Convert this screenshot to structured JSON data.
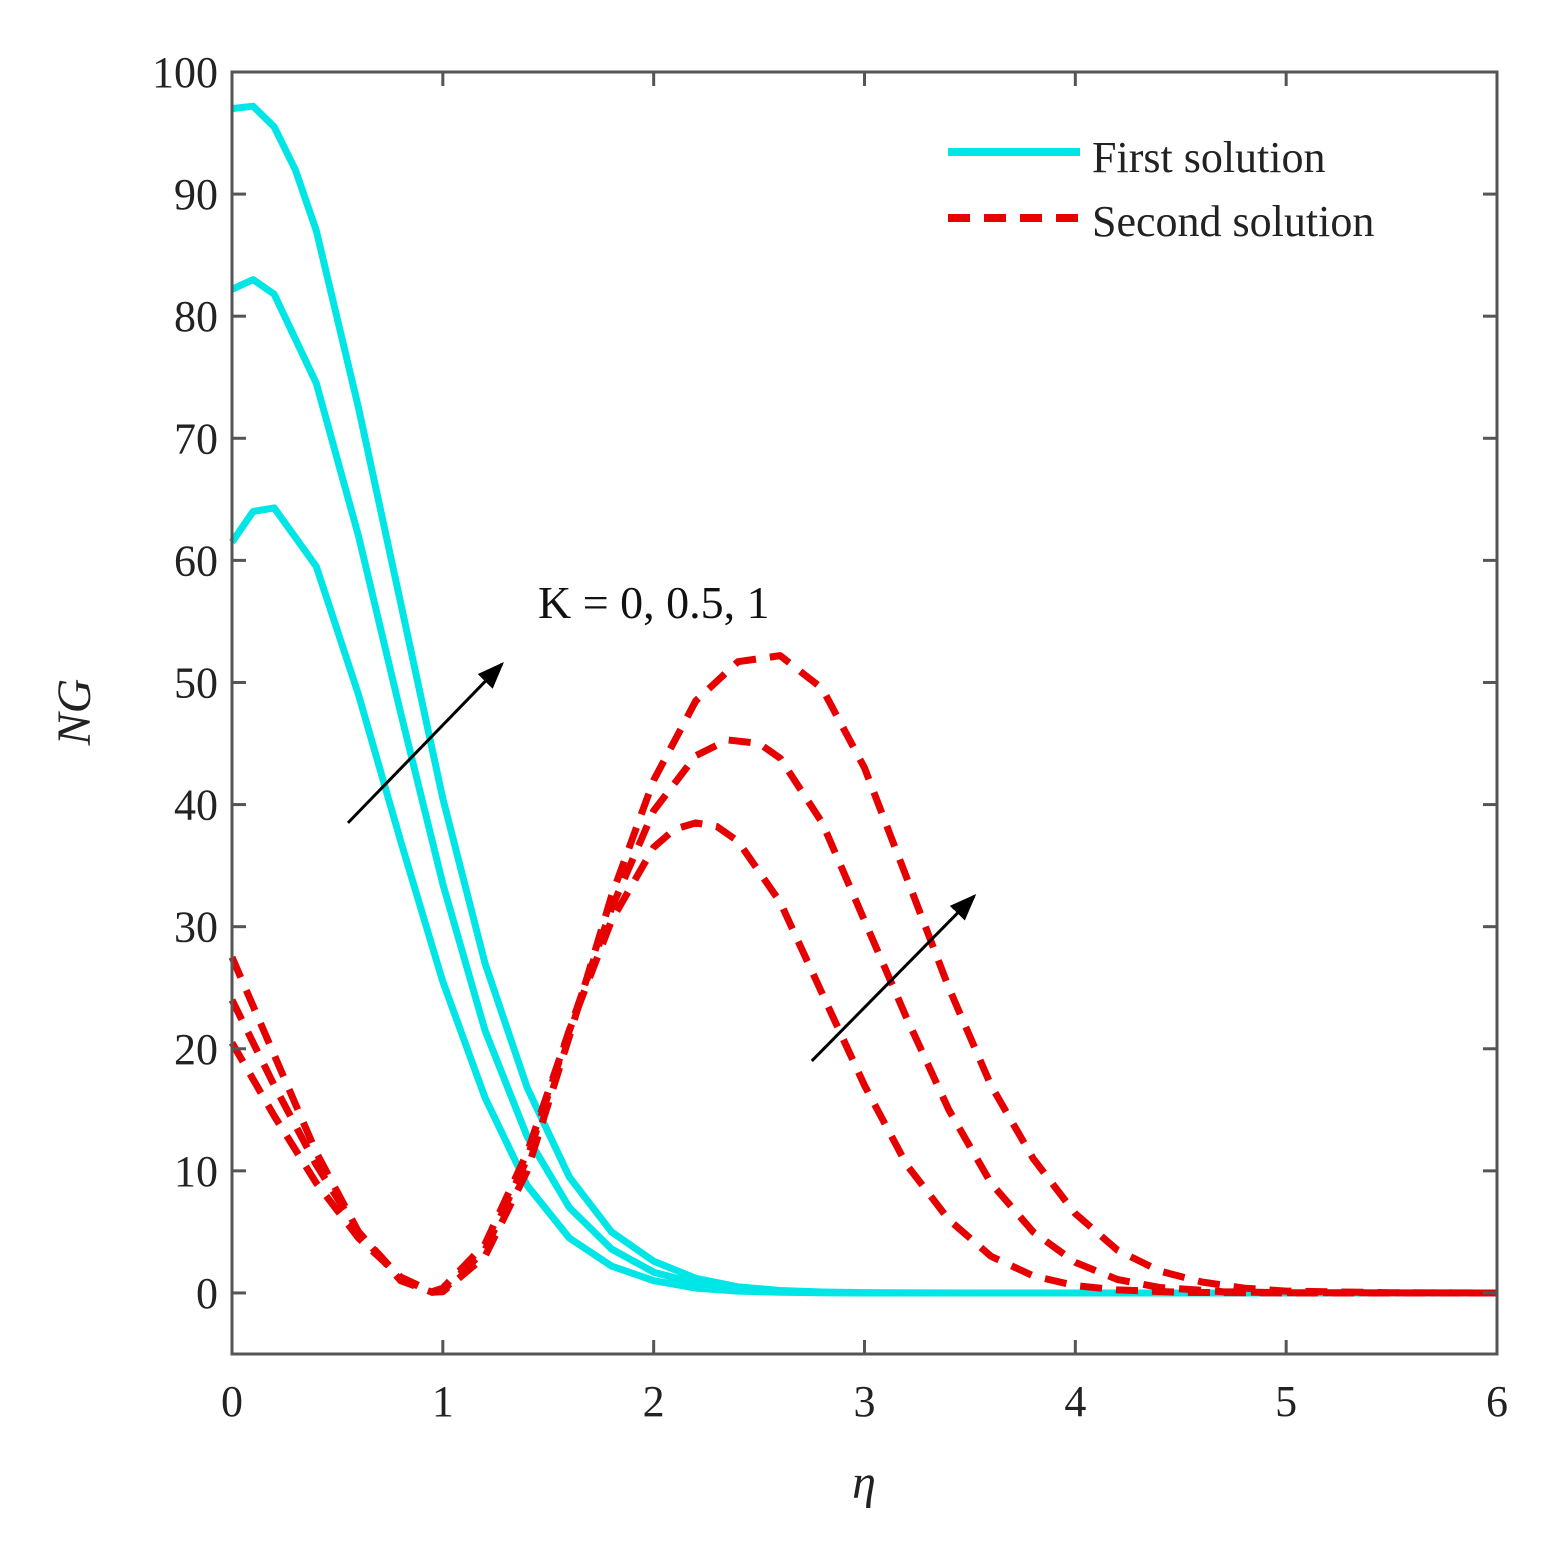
{
  "chart_data": {
    "type": "line",
    "title": "",
    "xlabel": "η",
    "ylabel": "NG",
    "xlim": [
      0,
      6
    ],
    "ylim": [
      -5,
      100
    ],
    "xticks": [
      0,
      1,
      2,
      3,
      4,
      5,
      6
    ],
    "yticks": [
      0,
      10,
      20,
      30,
      40,
      50,
      60,
      70,
      80,
      90,
      100
    ],
    "grid": false,
    "legend_position": "top-right",
    "legend": [
      {
        "label": "First solution",
        "color": "#00e5e5",
        "style": "solid"
      },
      {
        "label": "Second solution",
        "color": "#e60000",
        "style": "dashed"
      }
    ],
    "annotation": "K = 0, 0.5, 1",
    "series": [
      {
        "name": "First solution (K = 0)",
        "group": "First solution",
        "style": "solid",
        "color": "#00e5e5",
        "x": [
          0,
          0.1,
          0.2,
          0.4,
          0.6,
          0.8,
          1.0,
          1.2,
          1.4,
          1.6,
          1.8,
          2.0,
          2.2,
          2.4,
          2.6,
          2.8,
          3.0,
          3.5,
          4,
          5,
          6
        ],
        "y": [
          61.5,
          64,
          64.3,
          59.5,
          49,
          37,
          25.5,
          16,
          8.8,
          4.5,
          2.2,
          1.0,
          0.4,
          0.15,
          0.05,
          0.02,
          0,
          0,
          0,
          0,
          0
        ]
      },
      {
        "name": "First solution (K = 0.5)",
        "group": "First solution",
        "style": "solid",
        "color": "#00e5e5",
        "x": [
          0,
          0.1,
          0.2,
          0.4,
          0.6,
          0.8,
          1.0,
          1.2,
          1.4,
          1.6,
          1.8,
          2.0,
          2.2,
          2.4,
          2.6,
          2.8,
          3.0,
          3.5,
          4,
          5,
          6
        ],
        "y": [
          82.2,
          83,
          81.8,
          74.5,
          62,
          47.5,
          33.5,
          21.5,
          12.8,
          7.0,
          3.6,
          1.7,
          0.8,
          0.35,
          0.12,
          0.04,
          0,
          0,
          0,
          0,
          0
        ]
      },
      {
        "name": "First solution (K = 1)",
        "group": "First solution",
        "style": "solid",
        "color": "#00e5e5",
        "x": [
          0,
          0.1,
          0.2,
          0.3,
          0.4,
          0.6,
          0.8,
          1.0,
          1.2,
          1.4,
          1.6,
          1.8,
          2.0,
          2.2,
          2.4,
          2.6,
          2.8,
          3.0,
          3.5,
          4,
          5,
          6
        ],
        "y": [
          97,
          97.2,
          95.5,
          92,
          87,
          72.5,
          56.5,
          40.5,
          27,
          16.8,
          9.5,
          5.0,
          2.6,
          1.2,
          0.5,
          0.2,
          0.08,
          0.03,
          0,
          0,
          0,
          0
        ]
      },
      {
        "name": "Second solution (K = 0)",
        "group": "Second solution",
        "style": "dashed",
        "color": "#e60000",
        "x": [
          0,
          0.2,
          0.4,
          0.6,
          0.8,
          0.95,
          1.0,
          1.2,
          1.4,
          1.6,
          1.8,
          2.0,
          2.1,
          2.2,
          2.3,
          2.4,
          2.6,
          2.8,
          3.0,
          3.2,
          3.4,
          3.6,
          3.8,
          4.0,
          4.2,
          4.5,
          5,
          6
        ],
        "y": [
          20.5,
          14.5,
          9.0,
          4.5,
          1.3,
          0.1,
          0.4,
          4.0,
          11.5,
          21.5,
          30.5,
          36.5,
          38.0,
          38.5,
          38.2,
          37.0,
          32.0,
          24.5,
          17.0,
          10.5,
          6.0,
          3.0,
          1.4,
          0.6,
          0.25,
          0.05,
          0,
          0
        ]
      },
      {
        "name": "Second solution (K = 0.5)",
        "group": "Second solution",
        "style": "dashed",
        "color": "#e60000",
        "x": [
          0,
          0.2,
          0.4,
          0.6,
          0.8,
          0.95,
          1.0,
          1.2,
          1.4,
          1.6,
          1.8,
          2.0,
          2.2,
          2.35,
          2.5,
          2.6,
          2.8,
          3.0,
          3.2,
          3.4,
          3.6,
          3.8,
          4.0,
          4.2,
          4.4,
          4.7,
          5,
          6
        ],
        "y": [
          24,
          17,
          10.5,
          5.0,
          1.2,
          0.05,
          0.2,
          3.5,
          11.0,
          21.5,
          31.5,
          39.5,
          44.0,
          45.3,
          45.0,
          43.8,
          38.5,
          30.5,
          22.5,
          15.0,
          9.0,
          5.0,
          2.5,
          1.1,
          0.45,
          0.1,
          0.02,
          0
        ]
      },
      {
        "name": "Second solution (K = 1)",
        "group": "Second solution",
        "style": "dashed",
        "color": "#e60000",
        "x": [
          0,
          0.2,
          0.4,
          0.6,
          0.8,
          0.95,
          1.0,
          1.2,
          1.4,
          1.6,
          1.8,
          2.0,
          2.2,
          2.4,
          2.6,
          2.8,
          3.0,
          3.2,
          3.4,
          3.6,
          3.8,
          4.0,
          4.2,
          4.4,
          4.6,
          4.8,
          5.0,
          5.5,
          6
        ],
        "y": [
          27.5,
          19.5,
          11.5,
          5.0,
          1.0,
          0.05,
          0.1,
          3.0,
          10.0,
          21.0,
          32.5,
          42.0,
          48.5,
          51.7,
          52.2,
          49.5,
          43.0,
          34.0,
          25.0,
          17.0,
          11.0,
          6.5,
          3.5,
          1.8,
          0.9,
          0.4,
          0.15,
          0.02,
          0
        ]
      }
    ],
    "arrows": [
      {
        "from": [
          0.55,
          38.5
        ],
        "to": [
          1.28,
          51.5
        ]
      },
      {
        "from": [
          2.75,
          19.0
        ],
        "to": [
          3.52,
          32.5
        ]
      }
    ]
  }
}
